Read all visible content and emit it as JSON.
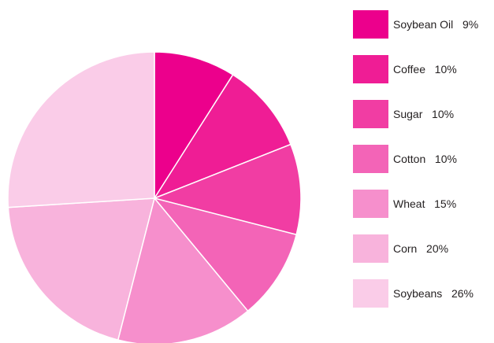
{
  "chart_data": {
    "type": "pie",
    "title": "",
    "legend_position": "right",
    "slices": [
      {
        "label": "Soybean Oil",
        "value": 9,
        "value_text": "9%",
        "color": "#ec008c"
      },
      {
        "label": "Coffee",
        "value": 10,
        "value_text": "10%",
        "color": "#ef1d95"
      },
      {
        "label": "Sugar",
        "value": 10,
        "value_text": "10%",
        "color": "#f13da3"
      },
      {
        "label": "Cotton",
        "value": 10,
        "value_text": "10%",
        "color": "#f364b7"
      },
      {
        "label": "Wheat",
        "value": 15,
        "value_text": "15%",
        "color": "#f68fcc"
      },
      {
        "label": "Corn",
        "value": 20,
        "value_text": "20%",
        "color": "#f8b3dc"
      },
      {
        "label": "Soybeans",
        "value": 26,
        "value_text": "26%",
        "color": "#facce8"
      }
    ]
  }
}
